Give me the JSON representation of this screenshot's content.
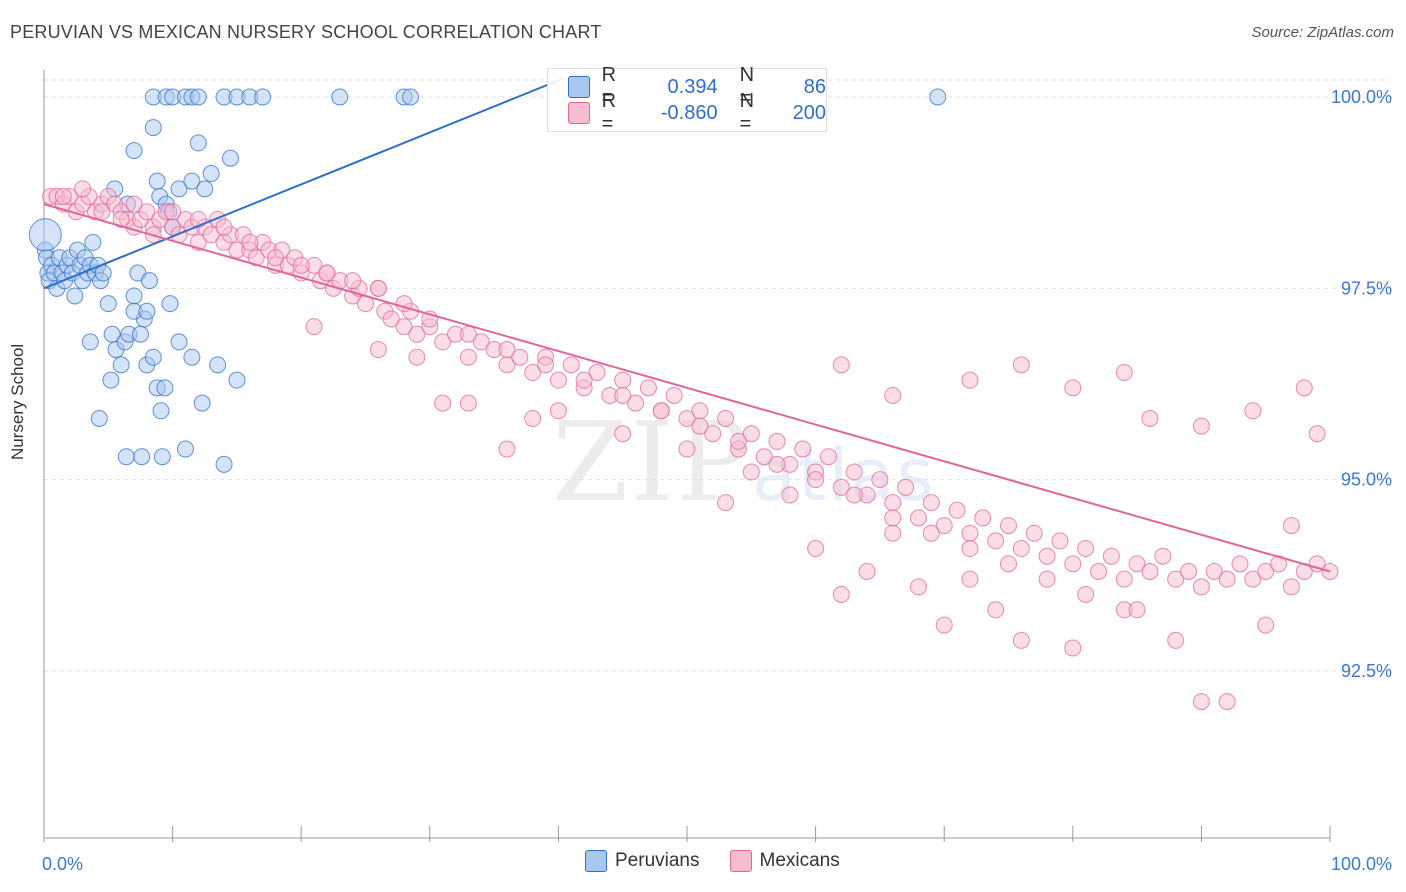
{
  "title": "PERUVIAN VS MEXICAN NURSERY SCHOOL CORRELATION CHART",
  "source": "Source: ZipAtlas.com",
  "watermark": "ZIPatlas",
  "colors": {
    "blue": "#2f6fc8",
    "blue_fill": "#a9c8f0",
    "pink": "#e0669a",
    "pink_fill": "#f6bcd0",
    "tick_label": "#3b78d0"
  },
  "legend_top": [
    {
      "r_label": "R =",
      "r_value": "0.394",
      "n_label": "N =",
      "n_value": "86"
    },
    {
      "r_label": "R =",
      "r_value": "-0.860",
      "n_label": "N =",
      "n_value": "200"
    }
  ],
  "chart_data": {
    "type": "scatter",
    "title": "PERUVIAN VS MEXICAN NURSERY SCHOOL CORRELATION CHART",
    "xlabel": "",
    "ylabel": "Nursery School",
    "xlim": [
      0,
      100
    ],
    "ylim": [
      90.0,
      100.4
    ],
    "x_tick_labels": [
      "0.0%",
      "100.0%"
    ],
    "y_ticks": [
      {
        "value": 100.0,
        "label": "100.0%"
      },
      {
        "value": 97.5,
        "label": "97.5%"
      },
      {
        "value": 95.0,
        "label": "95.0%"
      },
      {
        "value": 92.5,
        "label": "92.5%"
      }
    ],
    "legend": "bottom-center",
    "grid": true,
    "series": [
      {
        "name": "Peruvians",
        "color": "#2f6fc8",
        "trend": {
          "x": [
            0,
            40.5
          ],
          "y": [
            97.5,
            100.25
          ]
        },
        "points": [
          [
            0.1,
            98.0
          ],
          [
            0.2,
            97.9
          ],
          [
            0.3,
            97.7
          ],
          [
            0.4,
            97.6
          ],
          [
            0.6,
            97.8
          ],
          [
            0.8,
            97.7
          ],
          [
            1.0,
            97.5
          ],
          [
            1.2,
            97.9
          ],
          [
            1.4,
            97.7
          ],
          [
            1.6,
            97.6
          ],
          [
            1.8,
            97.8
          ],
          [
            2.0,
            97.9
          ],
          [
            2.2,
            97.7
          ],
          [
            2.4,
            97.4
          ],
          [
            2.6,
            98.0
          ],
          [
            2.8,
            97.8
          ],
          [
            3.0,
            97.6
          ],
          [
            3.2,
            97.9
          ],
          [
            3.4,
            97.7
          ],
          [
            3.6,
            97.8
          ],
          [
            3.8,
            98.1
          ],
          [
            4.0,
            97.7
          ],
          [
            4.2,
            97.8
          ],
          [
            4.4,
            97.6
          ],
          [
            4.6,
            97.7
          ],
          [
            5.0,
            97.3
          ],
          [
            5.3,
            96.9
          ],
          [
            5.6,
            96.7
          ],
          [
            6.0,
            96.5
          ],
          [
            6.3,
            96.8
          ],
          [
            6.6,
            96.9
          ],
          [
            7.0,
            97.4
          ],
          [
            7.3,
            97.7
          ],
          [
            7.5,
            96.9
          ],
          [
            7.8,
            97.1
          ],
          [
            8.0,
            96.5
          ],
          [
            8.2,
            97.6
          ],
          [
            8.5,
            96.6
          ],
          [
            8.8,
            96.2
          ],
          [
            9.1,
            95.9
          ],
          [
            9.4,
            96.2
          ],
          [
            9.8,
            97.3
          ],
          [
            3.6,
            96.8
          ],
          [
            4.3,
            95.8
          ],
          [
            5.2,
            96.3
          ],
          [
            6.4,
            95.3
          ],
          [
            7.6,
            95.3
          ],
          [
            9.2,
            95.3
          ],
          [
            11.0,
            95.4
          ],
          [
            14.0,
            95.2
          ],
          [
            11.5,
            96.6
          ],
          [
            10.5,
            96.8
          ],
          [
            12.3,
            96.0
          ],
          [
            15.0,
            96.3
          ],
          [
            13.5,
            96.5
          ],
          [
            7.0,
            97.2
          ],
          [
            8.0,
            97.2
          ],
          [
            6.5,
            98.6
          ],
          [
            5.5,
            98.8
          ],
          [
            7.0,
            99.3
          ],
          [
            8.5,
            99.6
          ],
          [
            9.0,
            98.7
          ],
          [
            9.5,
            98.6
          ],
          [
            10.0,
            98.3
          ],
          [
            10.5,
            98.8
          ],
          [
            11.5,
            98.9
          ],
          [
            12.5,
            98.8
          ],
          [
            13.0,
            99.0
          ],
          [
            14.5,
            99.2
          ],
          [
            12.0,
            99.4
          ],
          [
            8.8,
            98.9
          ],
          [
            9.7,
            98.5
          ],
          [
            8.5,
            100.0
          ],
          [
            9.5,
            100.0
          ],
          [
            10.0,
            100.0
          ],
          [
            11.0,
            100.0
          ],
          [
            11.5,
            100.0
          ],
          [
            12.0,
            100.0
          ],
          [
            14.0,
            100.0
          ],
          [
            15.0,
            100.0
          ],
          [
            16.0,
            100.0
          ],
          [
            17.0,
            100.0
          ],
          [
            23.0,
            100.0
          ],
          [
            28.0,
            100.0
          ],
          [
            28.5,
            100.0
          ],
          [
            69.5,
            100.0
          ]
        ]
      },
      {
        "name": "Mexicans",
        "color": "#e0669a",
        "trend": {
          "x": [
            0,
            100
          ],
          "y": [
            98.6,
            93.8
          ]
        },
        "points": [
          [
            0.5,
            98.7
          ],
          [
            1.0,
            98.7
          ],
          [
            1.5,
            98.6
          ],
          [
            2.0,
            98.7
          ],
          [
            2.5,
            98.5
          ],
          [
            3.0,
            98.6
          ],
          [
            3.5,
            98.7
          ],
          [
            4.0,
            98.5
          ],
          [
            4.5,
            98.6
          ],
          [
            5.0,
            98.7
          ],
          [
            5.5,
            98.6
          ],
          [
            6.0,
            98.5
          ],
          [
            6.5,
            98.4
          ],
          [
            7.0,
            98.3
          ],
          [
            7.5,
            98.4
          ],
          [
            8.0,
            98.5
          ],
          [
            8.5,
            98.3
          ],
          [
            9.0,
            98.4
          ],
          [
            9.5,
            98.5
          ],
          [
            10.0,
            98.3
          ],
          [
            10.5,
            98.2
          ],
          [
            11.0,
            98.4
          ],
          [
            11.5,
            98.3
          ],
          [
            12.0,
            98.1
          ],
          [
            12.5,
            98.3
          ],
          [
            13.0,
            98.2
          ],
          [
            13.5,
            98.4
          ],
          [
            14.0,
            98.1
          ],
          [
            14.5,
            98.2
          ],
          [
            15.0,
            98.0
          ],
          [
            15.5,
            98.2
          ],
          [
            16.0,
            98.0
          ],
          [
            16.5,
            97.9
          ],
          [
            17.0,
            98.1
          ],
          [
            17.5,
            98.0
          ],
          [
            18.0,
            97.8
          ],
          [
            18.5,
            98.0
          ],
          [
            19.0,
            97.8
          ],
          [
            19.5,
            97.9
          ],
          [
            20.0,
            97.7
          ],
          [
            21.0,
            97.8
          ],
          [
            21.5,
            97.6
          ],
          [
            22.0,
            97.7
          ],
          [
            22.5,
            97.5
          ],
          [
            23.0,
            97.6
          ],
          [
            24.0,
            97.4
          ],
          [
            24.5,
            97.5
          ],
          [
            25.0,
            97.3
          ],
          [
            26.0,
            97.5
          ],
          [
            26.5,
            97.2
          ],
          [
            27.0,
            97.1
          ],
          [
            28.0,
            97.0
          ],
          [
            28.5,
            97.2
          ],
          [
            29.0,
            96.9
          ],
          [
            30.0,
            97.0
          ],
          [
            31.0,
            96.8
          ],
          [
            32.0,
            96.9
          ],
          [
            33.0,
            96.6
          ],
          [
            34.0,
            96.8
          ],
          [
            35.0,
            96.7
          ],
          [
            36.0,
            96.5
          ],
          [
            37.0,
            96.6
          ],
          [
            38.0,
            96.4
          ],
          [
            39.0,
            96.6
          ],
          [
            40.0,
            96.3
          ],
          [
            41.0,
            96.5
          ],
          [
            42.0,
            96.2
          ],
          [
            43.0,
            96.4
          ],
          [
            44.0,
            96.1
          ],
          [
            45.0,
            96.3
          ],
          [
            46.0,
            96.0
          ],
          [
            47.0,
            96.2
          ],
          [
            48.0,
            95.9
          ],
          [
            49.0,
            96.1
          ],
          [
            50.0,
            95.8
          ],
          [
            51.0,
            95.9
          ],
          [
            52.0,
            95.6
          ],
          [
            53.0,
            95.8
          ],
          [
            54.0,
            95.4
          ],
          [
            55.0,
            95.6
          ],
          [
            56.0,
            95.3
          ],
          [
            57.0,
            95.5
          ],
          [
            58.0,
            95.2
          ],
          [
            59.0,
            95.4
          ],
          [
            60.0,
            95.1
          ],
          [
            61.0,
            95.3
          ],
          [
            62.0,
            94.9
          ],
          [
            63.0,
            95.1
          ],
          [
            64.0,
            94.8
          ],
          [
            65.0,
            95.0
          ],
          [
            66.0,
            94.7
          ],
          [
            67.0,
            94.9
          ],
          [
            68.0,
            94.5
          ],
          [
            69.0,
            94.7
          ],
          [
            70.0,
            94.4
          ],
          [
            71.0,
            94.6
          ],
          [
            72.0,
            94.3
          ],
          [
            73.0,
            94.5
          ],
          [
            74.0,
            94.2
          ],
          [
            75.0,
            94.4
          ],
          [
            76.0,
            94.1
          ],
          [
            77.0,
            94.3
          ],
          [
            78.0,
            94.0
          ],
          [
            79.0,
            94.2
          ],
          [
            80.0,
            93.9
          ],
          [
            81.0,
            94.1
          ],
          [
            82.0,
            93.8
          ],
          [
            83.0,
            94.0
          ],
          [
            84.0,
            93.7
          ],
          [
            85.0,
            93.9
          ],
          [
            86.0,
            93.8
          ],
          [
            87.0,
            94.0
          ],
          [
            88.0,
            93.7
          ],
          [
            89.0,
            93.8
          ],
          [
            90.0,
            93.6
          ],
          [
            91.0,
            93.8
          ],
          [
            92.0,
            93.7
          ],
          [
            93.0,
            93.9
          ],
          [
            94.0,
            93.7
          ],
          [
            95.0,
            93.8
          ],
          [
            96.0,
            93.9
          ],
          [
            97.0,
            93.6
          ],
          [
            98.0,
            93.8
          ],
          [
            99.0,
            93.9
          ],
          [
            100.0,
            93.8
          ],
          [
            1.5,
            98.7
          ],
          [
            3.0,
            98.8
          ],
          [
            4.5,
            98.5
          ],
          [
            6.0,
            98.4
          ],
          [
            7.0,
            98.6
          ],
          [
            8.5,
            98.2
          ],
          [
            10.0,
            98.5
          ],
          [
            12.0,
            98.4
          ],
          [
            14.0,
            98.3
          ],
          [
            16.0,
            98.1
          ],
          [
            18.0,
            97.9
          ],
          [
            20.0,
            97.8
          ],
          [
            22.0,
            97.7
          ],
          [
            24.0,
            97.6
          ],
          [
            26.0,
            97.5
          ],
          [
            28.0,
            97.3
          ],
          [
            30.0,
            97.1
          ],
          [
            33.0,
            96.9
          ],
          [
            36.0,
            96.7
          ],
          [
            39.0,
            96.5
          ],
          [
            42.0,
            96.3
          ],
          [
            45.0,
            96.1
          ],
          [
            48.0,
            95.9
          ],
          [
            51.0,
            95.7
          ],
          [
            54.0,
            95.5
          ],
          [
            57.0,
            95.2
          ],
          [
            60.0,
            95.0
          ],
          [
            63.0,
            94.8
          ],
          [
            66.0,
            94.5
          ],
          [
            69.0,
            94.3
          ],
          [
            72.0,
            94.1
          ],
          [
            75.0,
            93.9
          ],
          [
            78.0,
            93.7
          ],
          [
            81.0,
            93.5
          ],
          [
            84.0,
            93.3
          ],
          [
            21.0,
            97.0
          ],
          [
            26.0,
            96.7
          ],
          [
            29.0,
            96.6
          ],
          [
            31.0,
            96.0
          ],
          [
            33.0,
            96.0
          ],
          [
            36.0,
            95.4
          ],
          [
            38.0,
            95.8
          ],
          [
            40.0,
            95.9
          ],
          [
            45.0,
            95.6
          ],
          [
            50.0,
            95.4
          ],
          [
            53.0,
            94.7
          ],
          [
            55.0,
            95.1
          ],
          [
            58.0,
            94.8
          ],
          [
            60.0,
            94.1
          ],
          [
            62.0,
            93.5
          ],
          [
            64.0,
            93.8
          ],
          [
            66.0,
            94.3
          ],
          [
            68.0,
            93.6
          ],
          [
            70.0,
            93.1
          ],
          [
            72.0,
            93.7
          ],
          [
            74.0,
            93.3
          ],
          [
            76.0,
            92.9
          ],
          [
            80.0,
            92.8
          ],
          [
            85.0,
            93.3
          ],
          [
            88.0,
            92.9
          ],
          [
            90.0,
            92.1
          ],
          [
            92.0,
            92.1
          ],
          [
            95.0,
            93.1
          ],
          [
            97.0,
            94.4
          ],
          [
            99.0,
            95.6
          ],
          [
            62.0,
            96.5
          ],
          [
            66.0,
            96.1
          ],
          [
            72.0,
            96.3
          ],
          [
            76.0,
            96.5
          ],
          [
            80.0,
            96.2
          ],
          [
            84.0,
            96.4
          ],
          [
            86.0,
            95.8
          ],
          [
            90.0,
            95.7
          ],
          [
            94.0,
            95.9
          ],
          [
            98.0,
            96.2
          ]
        ]
      }
    ]
  }
}
